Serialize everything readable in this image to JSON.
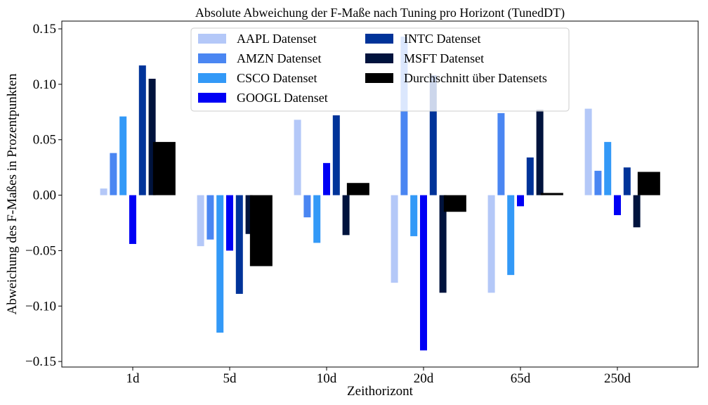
{
  "chart_data": {
    "type": "bar",
    "title": "Absolute Abweichung der F-Maße nach Tuning pro Horizont (TunedDT)",
    "xlabel": "Zeithorizont",
    "ylabel": "Abweichung des F-Maßes in Prozentpunkten",
    "categories": [
      "1d",
      "5d",
      "10d",
      "20d",
      "65d",
      "250d"
    ],
    "ylim": [
      -0.155,
      0.157
    ],
    "yticks": [
      -0.15,
      -0.1,
      -0.05,
      0.0,
      0.05,
      0.1,
      0.15
    ],
    "ytick_labels": [
      "−0.15",
      "−0.10",
      "−0.05",
      "0.00",
      "0.05",
      "0.10",
      "0.15"
    ],
    "grid": false,
    "legend_placement": "upper-center",
    "series": [
      {
        "name": "AAPL Datenset",
        "color": "#b4c8f8",
        "values": [
          0.006,
          -0.046,
          0.068,
          -0.079,
          -0.088,
          0.078
        ]
      },
      {
        "name": "AMZN Datenset",
        "color": "#4a86f2",
        "values": [
          0.038,
          -0.04,
          -0.02,
          0.143,
          0.074,
          0.022
        ]
      },
      {
        "name": "CSCO Datenset",
        "color": "#3399f7",
        "values": [
          0.071,
          -0.124,
          -0.043,
          -0.037,
          -0.072,
          0.048
        ]
      },
      {
        "name": "GOOGL Datenset",
        "color": "#0000f5",
        "values": [
          -0.044,
          -0.05,
          0.029,
          -0.14,
          -0.01,
          -0.018
        ]
      },
      {
        "name": "INTC Datenset",
        "color": "#003399",
        "values": [
          0.117,
          -0.089,
          0.072,
          0.108,
          0.034,
          0.025
        ]
      },
      {
        "name": "MSFT Datenset",
        "color": "#00133d",
        "values": [
          0.105,
          -0.035,
          -0.036,
          -0.088,
          0.077,
          -0.029
        ]
      },
      {
        "name": "Durchschnitt über Datensets",
        "color": "#000000",
        "values": [
          0.048,
          -0.064,
          0.011,
          -0.015,
          0.002,
          0.021
        ]
      }
    ]
  }
}
